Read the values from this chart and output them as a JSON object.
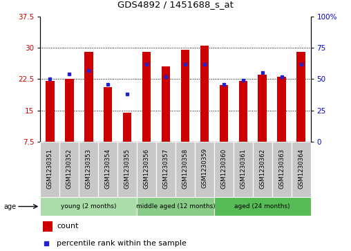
{
  "title": "GDS4892 / 1451688_s_at",
  "samples": [
    "GSM1230351",
    "GSM1230352",
    "GSM1230353",
    "GSM1230354",
    "GSM1230355",
    "GSM1230356",
    "GSM1230357",
    "GSM1230358",
    "GSM1230359",
    "GSM1230360",
    "GSM1230361",
    "GSM1230362",
    "GSM1230363",
    "GSM1230364"
  ],
  "bar_values": [
    22.0,
    22.5,
    29.0,
    20.5,
    14.5,
    29.0,
    25.5,
    29.5,
    30.5,
    21.0,
    22.0,
    23.5,
    23.0,
    29.0
  ],
  "percentile_values": [
    50,
    54,
    57,
    46,
    38,
    62,
    52,
    62,
    62,
    46,
    49,
    55,
    52,
    62
  ],
  "ylim_left": [
    7.5,
    37.5
  ],
  "ylim_right": [
    0,
    100
  ],
  "yticks_left": [
    7.5,
    15,
    22.5,
    30,
    37.5
  ],
  "yticks_right": [
    0,
    25,
    50,
    75,
    100
  ],
  "grid_lines": [
    15,
    22.5,
    30
  ],
  "bar_color": "#cc0000",
  "dot_color": "#2222cc",
  "bar_bottom": 7.5,
  "groups": [
    {
      "label": "young (2 months)",
      "start": 0,
      "end": 5
    },
    {
      "label": "middle aged (12 months)",
      "start": 5,
      "end": 9
    },
    {
      "label": "aged (24 months)",
      "start": 9,
      "end": 14
    }
  ],
  "group_colors": [
    "#aaddaa",
    "#88cc88",
    "#55bb55"
  ],
  "age_label": "age",
  "legend_count_label": "count",
  "legend_pct_label": "percentile rank within the sample",
  "left_tick_color": "#cc0000",
  "right_tick_color": "#0000cc",
  "background_color": "#ffffff",
  "tick_label_area_color": "#c8c8c8"
}
